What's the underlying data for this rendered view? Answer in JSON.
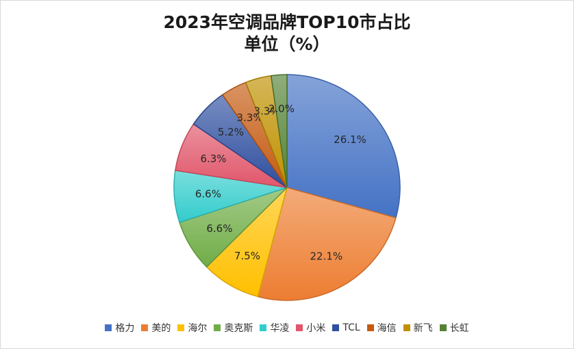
{
  "chart_data": {
    "type": "pie",
    "title": "2023年空调品牌TOP10市占比",
    "subtitle": "单位（%）",
    "slices": [
      {
        "label": "格力",
        "value": 26.1,
        "display": "26.1%",
        "color": "#4472C4"
      },
      {
        "label": "美的",
        "value": 22.1,
        "display": "22.1%",
        "color": "#ED7D31"
      },
      {
        "label": "海尔",
        "value": 7.5,
        "display": "7.5%",
        "color": "#FFC000"
      },
      {
        "label": "奥克斯",
        "value": 6.6,
        "display": "6.6%",
        "color": "#70AD47"
      },
      {
        "label": "华凌",
        "value": 6.6,
        "display": "6.6%",
        "color": "#33CCCC"
      },
      {
        "label": "小米",
        "value": 6.3,
        "display": "6.3%",
        "color": "#E0566A"
      },
      {
        "label": "TCL",
        "value": 5.2,
        "display": "5.2%",
        "color": "#2F4F9F"
      },
      {
        "label": "海信",
        "value": 3.3,
        "display": "3.3%",
        "color": "#C55A11"
      },
      {
        "label": "新飞",
        "value": 3.3,
        "display": "3.3%",
        "color": "#BF9000"
      },
      {
        "label": "长虹",
        "value": 2.0,
        "display": "2.0%",
        "color": "#548235"
      }
    ],
    "legend_position": "bottom"
  }
}
